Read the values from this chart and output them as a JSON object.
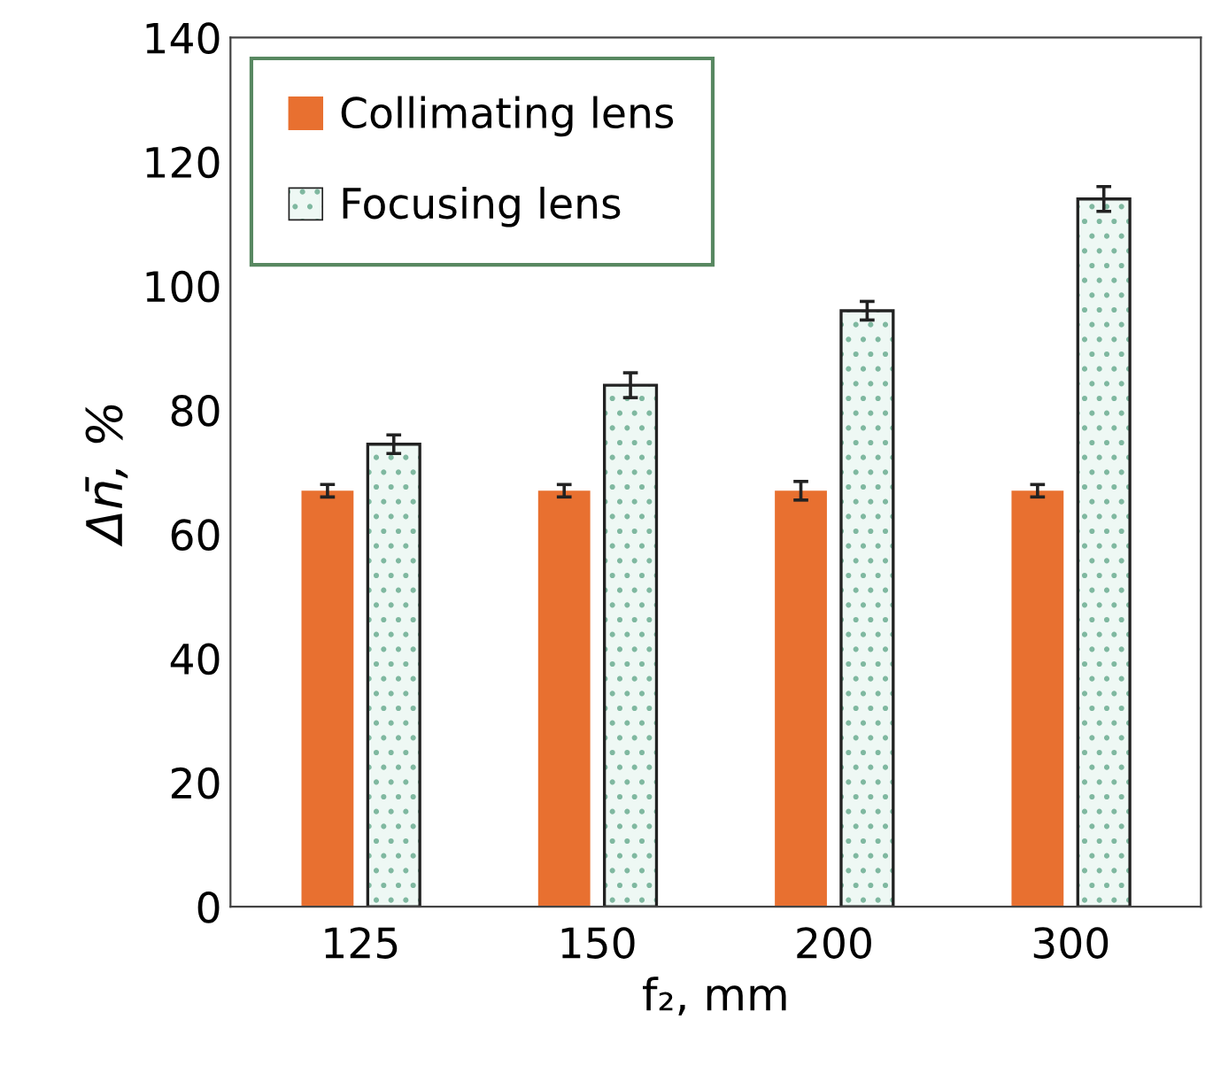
{
  "chart_data": {
    "type": "bar",
    "xlabel": "f₂, mm",
    "ylabel": "Δn̄, %",
    "categories": [
      "125",
      "150",
      "200",
      "300"
    ],
    "series": [
      {
        "name": "Collimating lens",
        "color": "#e87030",
        "values": [
          67,
          67,
          67,
          67
        ],
        "errors": [
          1,
          1,
          1.5,
          1
        ]
      },
      {
        "name": "Focusing lens",
        "color": "#eef8f4",
        "values": [
          74.5,
          84,
          96,
          114
        ],
        "errors": [
          1.5,
          2,
          1.5,
          2
        ]
      }
    ],
    "ylim": [
      0,
      140
    ],
    "yticks": [
      0,
      20,
      40,
      60,
      80,
      100,
      120,
      140
    ],
    "grid": false,
    "legend": "top left"
  }
}
